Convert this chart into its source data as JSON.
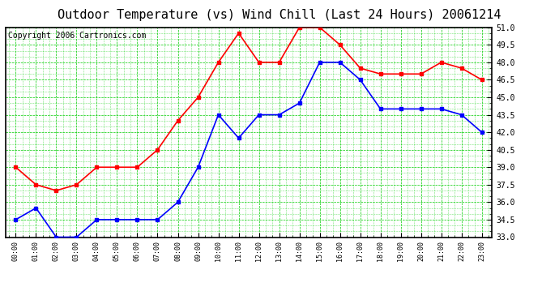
{
  "title": "Outdoor Temperature (vs) Wind Chill (Last 24 Hours) 20061214",
  "copyright": "Copyright 2006 Cartronics.com",
  "x_labels": [
    "00:00",
    "01:00",
    "02:00",
    "03:00",
    "04:00",
    "05:00",
    "06:00",
    "07:00",
    "08:00",
    "09:00",
    "10:00",
    "11:00",
    "12:00",
    "13:00",
    "14:00",
    "15:00",
    "16:00",
    "17:00",
    "18:00",
    "19:00",
    "20:00",
    "21:00",
    "22:00",
    "23:00"
  ],
  "outdoor_temp": [
    39.0,
    37.5,
    37.0,
    37.5,
    39.0,
    39.0,
    39.0,
    40.5,
    43.0,
    45.0,
    48.0,
    50.5,
    48.0,
    48.0,
    51.0,
    51.0,
    49.5,
    47.5,
    47.0,
    47.0,
    47.0,
    48.0,
    47.5,
    46.5
  ],
  "wind_chill": [
    34.5,
    35.5,
    33.0,
    33.0,
    34.5,
    34.5,
    34.5,
    34.5,
    36.0,
    39.0,
    43.5,
    41.5,
    43.5,
    43.5,
    44.5,
    48.0,
    48.0,
    46.5,
    44.0,
    44.0,
    44.0,
    44.0,
    43.5,
    42.0
  ],
  "temp_color": "#ff0000",
  "wind_color": "#0000ff",
  "bg_color": "#ffffff",
  "plot_bg_color": "#ffffff",
  "grid_color_major": "#00cc00",
  "grid_color_minor": "#00cc00",
  "ylim": [
    33.0,
    51.0
  ],
  "yticks": [
    33.0,
    34.5,
    36.0,
    37.5,
    39.0,
    40.5,
    42.0,
    43.5,
    45.0,
    46.5,
    48.0,
    49.5,
    51.0
  ],
  "title_fontsize": 11,
  "copyright_fontsize": 7,
  "marker": "s",
  "markersize": 2.5,
  "linewidth": 1.2,
  "border_color": "#000000"
}
